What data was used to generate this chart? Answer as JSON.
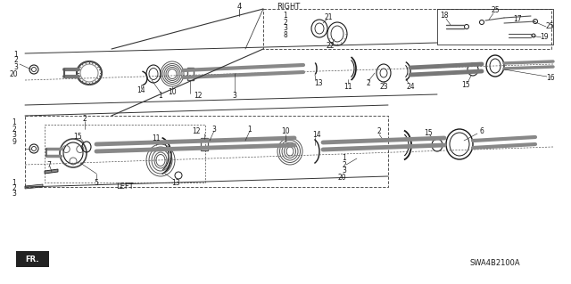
{
  "bg_color": "#ffffff",
  "fig_width": 6.4,
  "fig_height": 3.19,
  "diagram_code": "SWA4B2100A",
  "right_label": "RIGHT",
  "left_label": "LEFT",
  "fr_label": "FR.",
  "lc": "#1a1a1a",
  "tc": "#1a1a1a",
  "dc": "#555555",
  "gc": "#888888"
}
